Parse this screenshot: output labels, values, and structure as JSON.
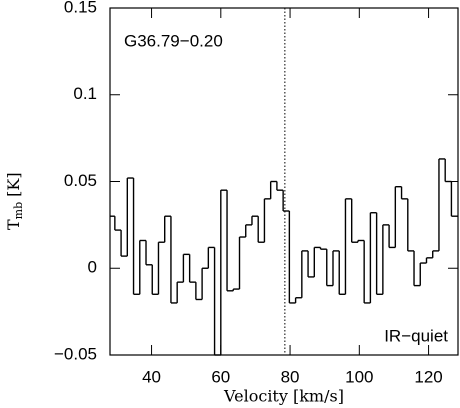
{
  "chart_data": {
    "type": "step",
    "title": "G36.79−0.20",
    "annotation": "IR−quiet",
    "xlabel": "Velocity [km/s]",
    "ylabel": "T",
    "ylabel_sub": "mb",
    "ylabel_unit": "[K]",
    "color": "#000000",
    "vline": 78.5,
    "xlim": [
      28,
      128.5
    ],
    "ylim": [
      -0.05,
      0.15
    ],
    "xticks": [
      40,
      60,
      80,
      100,
      120
    ],
    "yticks": [
      {
        "value": -0.05,
        "label": "−0.05"
      },
      0,
      0.05,
      0.1,
      0.15
    ],
    "x": [
      28.5,
      30.3,
      32.1,
      33.9,
      35.7,
      37.5,
      39.3,
      41.1,
      42.9,
      44.7,
      46.5,
      48.3,
      50.1,
      51.9,
      53.7,
      55.5,
      57.3,
      59.1,
      60.9,
      62.7,
      64.5,
      66.3,
      68.1,
      69.9,
      71.7,
      73.5,
      75.3,
      77.1,
      78.9,
      80.7,
      82.5,
      84.3,
      86.1,
      87.9,
      89.7,
      91.5,
      93.3,
      95.1,
      96.9,
      98.7,
      100.5,
      102.3,
      104.1,
      105.9,
      107.7,
      109.5,
      111.3,
      113.1,
      114.9,
      116.7,
      118.5,
      120.3,
      122.1,
      123.9,
      125.7,
      127.5
    ],
    "values": [
      0.03,
      0.022,
      0.007,
      0.052,
      -0.015,
      0.016,
      0.002,
      -0.015,
      0.015,
      0.03,
      -0.02,
      -0.008,
      0.008,
      -0.008,
      -0.018,
      0.0,
      0.012,
      -0.05,
      0.045,
      -0.013,
      -0.012,
      0.018,
      0.025,
      0.03,
      0.015,
      0.04,
      0.05,
      0.045,
      0.033,
      -0.02,
      -0.017,
      0.01,
      -0.005,
      0.012,
      0.011,
      -0.01,
      0.01,
      -0.015,
      0.04,
      0.015,
      0.016,
      -0.02,
      0.032,
      -0.015,
      0.025,
      0.012,
      0.047,
      0.04,
      0.01,
      -0.01,
      0.003,
      0.006,
      0.01,
      0.063,
      0.05,
      0.03
    ]
  }
}
